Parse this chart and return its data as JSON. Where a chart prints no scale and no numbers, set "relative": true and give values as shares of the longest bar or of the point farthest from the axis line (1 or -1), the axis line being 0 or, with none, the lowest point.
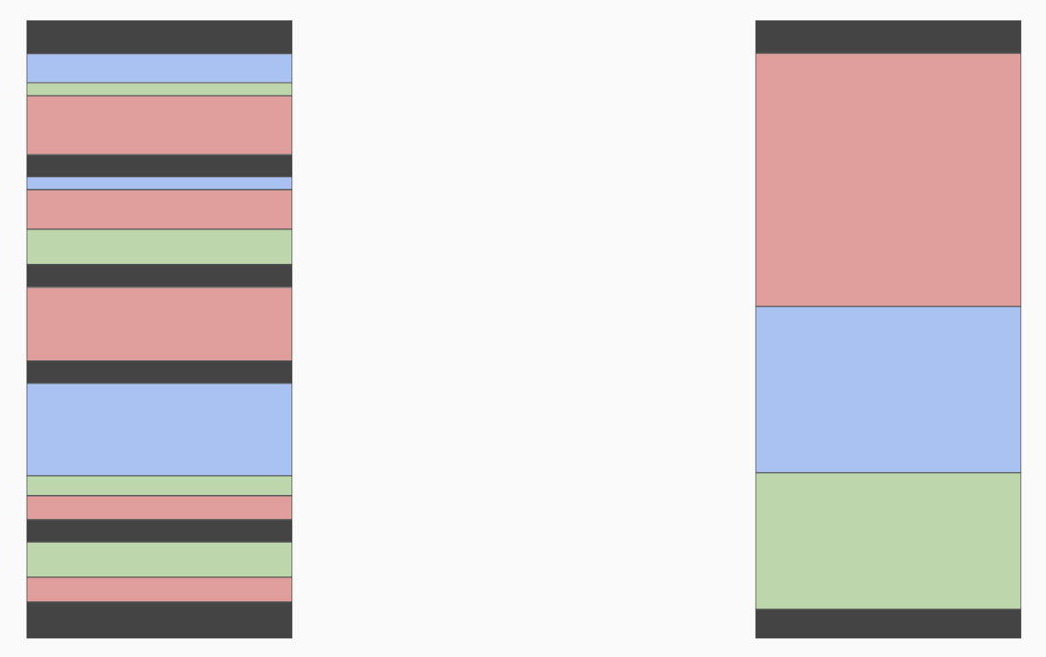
{
  "chart_data": {
    "type": "bar",
    "stacked": true,
    "relative": true,
    "categories": [
      null,
      null
    ],
    "legend": false,
    "series": [
      {
        "color": "#444444",
        "values": [
          0.059,
          null
        ]
      },
      {
        "color": "#df9e9c",
        "values": [
          0.04,
          null
        ]
      },
      {
        "color": "#bed6ab",
        "values": [
          0.057,
          null
        ]
      },
      {
        "color": "#444444",
        "values": [
          0.036,
          null
        ]
      },
      {
        "color": "#df9e9c",
        "values": [
          0.039,
          null
        ]
      },
      {
        "color": "#bed6ab",
        "values": [
          0.032,
          null
        ]
      },
      {
        "color": "#aac2f2",
        "values": [
          0.15,
          null
        ]
      },
      {
        "color": "#444444",
        "values": [
          0.036,
          null
        ]
      },
      {
        "color": "#df9e9c",
        "values": [
          0.119,
          null
        ]
      },
      {
        "color": "#444444",
        "values": [
          0.037,
          null
        ]
      },
      {
        "color": "#bed6ab",
        "values": [
          0.057,
          null
        ]
      },
      {
        "color": "#df9e9c",
        "values": [
          0.064,
          null
        ]
      },
      {
        "color": "#aac2f2",
        "values": [
          0.021,
          null
        ]
      },
      {
        "color": "#444444",
        "values": [
          0.036,
          null
        ]
      },
      {
        "color": "#df9e9c",
        "values": [
          0.095,
          null
        ]
      },
      {
        "color": "#bed6ab",
        "values": [
          0.021,
          null
        ]
      },
      {
        "color": "#aac2f2",
        "values": [
          0.047,
          null
        ]
      },
      {
        "color": "#444444",
        "values": [
          0.054,
          null
        ]
      },
      {
        "color": "#444444",
        "values": [
          null,
          0.047
        ]
      },
      {
        "color": "#bed6ab",
        "values": [
          null,
          0.221
        ]
      },
      {
        "color": "#aac2f2",
        "values": [
          null,
          0.269
        ]
      },
      {
        "color": "#df9e9c",
        "values": [
          null,
          0.41
        ]
      },
      {
        "color": "#444444",
        "values": [
          null,
          0.053
        ]
      }
    ]
  }
}
